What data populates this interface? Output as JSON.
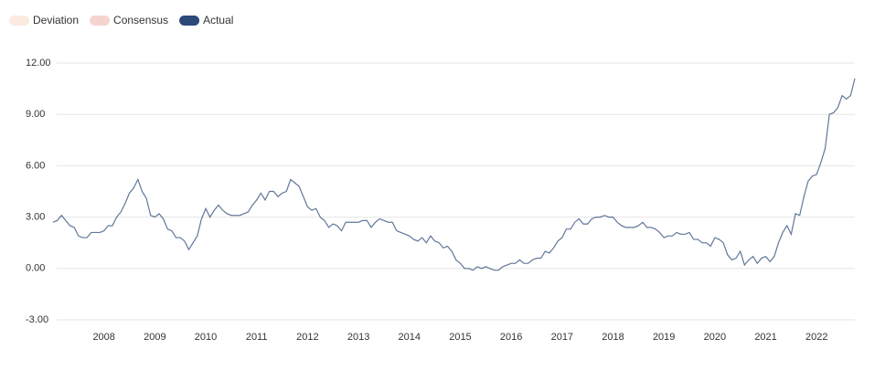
{
  "chart_data": {
    "type": "line",
    "categories": [
      null,
      null,
      null,
      null,
      null,
      null,
      null,
      null,
      null,
      null,
      null,
      null,
      "2008",
      null,
      null,
      null,
      null,
      null,
      null,
      null,
      null,
      null,
      null,
      null,
      "2009",
      null,
      null,
      null,
      null,
      null,
      null,
      null,
      null,
      null,
      null,
      null,
      "2010",
      null,
      null,
      null,
      null,
      null,
      null,
      null,
      null,
      null,
      null,
      null,
      "2011",
      null,
      null,
      null,
      null,
      null,
      null,
      null,
      null,
      null,
      null,
      null,
      "2012",
      null,
      null,
      null,
      null,
      null,
      null,
      null,
      null,
      null,
      null,
      null,
      "2013",
      null,
      null,
      null,
      null,
      null,
      null,
      null,
      null,
      null,
      null,
      null,
      "2014",
      null,
      null,
      null,
      null,
      null,
      null,
      null,
      null,
      null,
      null,
      null,
      "2015",
      null,
      null,
      null,
      null,
      null,
      null,
      null,
      null,
      null,
      null,
      null,
      "2016",
      null,
      null,
      null,
      null,
      null,
      null,
      null,
      null,
      null,
      null,
      null,
      "2017",
      null,
      null,
      null,
      null,
      null,
      null,
      null,
      null,
      null,
      null,
      null,
      "2018",
      null,
      null,
      null,
      null,
      null,
      null,
      null,
      null,
      null,
      null,
      null,
      "2019",
      null,
      null,
      null,
      null,
      null,
      null,
      null,
      null,
      null,
      null,
      null,
      "2020",
      null,
      null,
      null,
      null,
      null,
      null,
      null,
      null,
      null,
      null,
      null,
      "2021",
      null,
      null,
      null,
      null,
      null,
      null,
      null,
      null,
      null,
      null,
      null,
      "2022",
      null,
      null,
      null,
      null,
      null,
      null,
      null,
      null,
      null
    ],
    "series": [
      {
        "name": "Actual",
        "color": "#2c4a78",
        "values": [
          2.7,
          2.8,
          3.1,
          2.8,
          2.5,
          2.4,
          1.9,
          1.8,
          1.8,
          2.1,
          2.1,
          2.1,
          2.2,
          2.5,
          2.5,
          3.0,
          3.3,
          3.8,
          4.4,
          4.7,
          5.2,
          4.5,
          4.1,
          3.1,
          3.0,
          3.2,
          2.9,
          2.3,
          2.2,
          1.8,
          1.8,
          1.6,
          1.1,
          1.5,
          1.9,
          2.9,
          3.5,
          3.0,
          3.4,
          3.7,
          3.4,
          3.2,
          3.1,
          3.1,
          3.1,
          3.2,
          3.3,
          3.7,
          4.0,
          4.4,
          4.0,
          4.5,
          4.5,
          4.2,
          4.4,
          4.5,
          5.2,
          5.0,
          4.8,
          4.2,
          3.6,
          3.4,
          3.5,
          3.0,
          2.8,
          2.4,
          2.6,
          2.5,
          2.2,
          2.7,
          2.7,
          2.7,
          2.7,
          2.8,
          2.8,
          2.4,
          2.7,
          2.9,
          2.8,
          2.7,
          2.7,
          2.2,
          2.1,
          2.0,
          1.9,
          1.7,
          1.6,
          1.8,
          1.5,
          1.9,
          1.6,
          1.5,
          1.2,
          1.3,
          1.0,
          0.5,
          0.3,
          0.0,
          0.0,
          -0.1,
          0.1,
          0.0,
          0.1,
          0.0,
          -0.1,
          -0.1,
          0.1,
          0.2,
          0.3,
          0.3,
          0.5,
          0.3,
          0.3,
          0.5,
          0.6,
          0.6,
          1.0,
          0.9,
          1.2,
          1.6,
          1.8,
          2.3,
          2.3,
          2.7,
          2.9,
          2.6,
          2.6,
          2.9,
          3.0,
          3.0,
          3.1,
          3.0,
          3.0,
          2.7,
          2.5,
          2.4,
          2.4,
          2.4,
          2.5,
          2.7,
          2.4,
          2.4,
          2.3,
          2.1,
          1.8,
          1.9,
          1.9,
          2.1,
          2.0,
          2.0,
          2.1,
          1.7,
          1.7,
          1.5,
          1.5,
          1.3,
          1.8,
          1.7,
          1.5,
          0.8,
          0.5,
          0.6,
          1.0,
          0.2,
          0.5,
          0.7,
          0.3,
          0.6,
          0.7,
          0.4,
          0.7,
          1.5,
          2.1,
          2.5,
          2.0,
          3.2,
          3.1,
          4.2,
          5.1,
          5.4,
          5.5,
          6.2,
          7.0,
          9.0,
          9.1,
          9.4,
          10.1,
          9.9,
          10.1,
          11.1
        ]
      }
    ],
    "inactive_series": [
      {
        "name": "Deviation",
        "color": "#fbeadf"
      },
      {
        "name": "Consensus",
        "color": "#f5d4cf"
      }
    ],
    "ylim": [
      -3,
      12
    ],
    "yticks": [
      {
        "value": -3,
        "label": "-3.00"
      },
      {
        "value": 0,
        "label": "0.00"
      },
      {
        "value": 3,
        "label": "3.00"
      },
      {
        "value": 6,
        "label": "6.00"
      },
      {
        "value": 9,
        "label": "9.00"
      },
      {
        "value": 12,
        "label": "12.00"
      }
    ],
    "grid": true
  }
}
